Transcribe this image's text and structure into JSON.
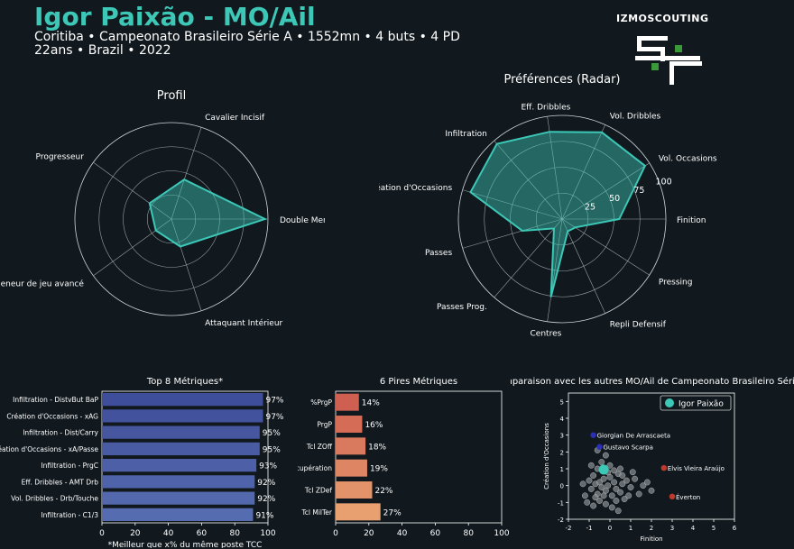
{
  "header": {
    "title": "Igor Paixão - MO/Ail",
    "line1": "Coritiba • Campeonato Brasileiro Série A • 1552mn • 4 buts • 4 PD",
    "line2": "22ans • Brazil • 2022",
    "brand": "IZMOSCOUTING"
  },
  "colors": {
    "accent": "#3cc7b6",
    "bg": "#11191f",
    "top_bars": "#4a5ba4",
    "worst_bars": "#e07f5a",
    "highlight_red": "#c0392b",
    "highlight_blue": "#2c2fb8"
  },
  "chart_data": [
    {
      "type": "radar",
      "title": "Profil",
      "labels": [
        "Double Menace",
        "Cavalier Incisif",
        "Progresseur",
        "Meneur de jeu avancé",
        "Attaquant Intérieur"
      ],
      "values": [
        97,
        43,
        28,
        20,
        30
      ],
      "rmax": 100
    },
    {
      "type": "radar",
      "title": "Préférences (Radar)",
      "labels": [
        "Finition",
        "Vol. Occasions",
        "Vol. Dribbles",
        "Eff. Dribbles",
        "Infiltration",
        "Création d'Occasions",
        "Passes",
        "Passes Prog.",
        "Centres",
        "Repli Defensif",
        "Pressing"
      ],
      "tick_labels": [
        "25",
        "50",
        "75",
        "100"
      ],
      "values": [
        55,
        95,
        92,
        85,
        96,
        92,
        40,
        12,
        76,
        13,
        15
      ],
      "rmax": 100
    },
    {
      "type": "bar",
      "orientation": "horizontal",
      "title": "Top 8 Métriques*",
      "categories": [
        "Infiltration - DistvBut BaP",
        "Création d'Occasions - xAG",
        "Infiltration - Dist/Carry",
        "Création d'Occasions - xA/Passe",
        "Infiltration - PrgC",
        "Eff. Dribbles - AMT Drb",
        "Vol. Dribbles - Drb/Touche",
        "Infiltration - C1/3"
      ],
      "values": [
        97,
        97,
        95,
        95,
        93,
        92,
        92,
        91
      ],
      "value_labels": [
        "97%",
        "97%",
        "95%",
        "95%",
        "93%",
        "92%",
        "92%",
        "91%"
      ],
      "xticks": [
        "0",
        "20",
        "40",
        "60",
        "80",
        "100"
      ],
      "xlim": [
        0,
        100
      ],
      "xlabel": "*Meilleur que x% du même poste TCC"
    },
    {
      "type": "bar",
      "orientation": "horizontal",
      "title": "6 Pires Métriques",
      "categories": [
        "%PrgP",
        "PrgP",
        "Tcl ZOff",
        "Récupération",
        "Tcl ZDef",
        "Tcl MilTer"
      ],
      "values": [
        14,
        16,
        18,
        19,
        22,
        27
      ],
      "value_labels": [
        "14%",
        "16%",
        "18%",
        "19%",
        "22%",
        "27%"
      ],
      "xticks": [
        "0",
        "20",
        "40",
        "60",
        "80",
        "100"
      ],
      "xlim": [
        0,
        100
      ]
    },
    {
      "type": "scatter",
      "title": "Comparaison avec les autres MO/Ail de Campeonato Brasileiro Série A",
      "xlabel": "Finition",
      "ylabel": "Création d'Occasions",
      "xlim": [
        -2,
        6
      ],
      "ylim": [
        -2,
        5.5
      ],
      "xticks": [
        "-2",
        "-1",
        "0",
        "1",
        "2",
        "3",
        "4",
        "5",
        "6"
      ],
      "yticks": [
        "-2",
        "-1",
        "0",
        "1",
        "2",
        "3",
        "4",
        "5"
      ],
      "legend": "Igor Paixão",
      "highlight": {
        "x": -0.3,
        "y": 0.95
      },
      "labeled_points": [
        {
          "name": "Giorgian De Arrascaeta",
          "x": -0.8,
          "y": 3.0,
          "color": "blue"
        },
        {
          "name": "Gustavo Scarpa",
          "x": -0.5,
          "y": 2.3,
          "color": "blue"
        },
        {
          "name": "Elvis Vieira Araújo",
          "x": 2.6,
          "y": 1.05,
          "color": "red"
        },
        {
          "name": "Éverton",
          "x": 3.0,
          "y": -0.65,
          "color": "red"
        }
      ],
      "others": [
        {
          "x": -1.0,
          "y": 0.3
        },
        {
          "x": -0.9,
          "y": -0.2
        },
        {
          "x": -0.8,
          "y": 0.6
        },
        {
          "x": -0.7,
          "y": 0.1
        },
        {
          "x": -0.6,
          "y": -0.5
        },
        {
          "x": -0.5,
          "y": 0.2
        },
        {
          "x": -0.4,
          "y": -0.1
        },
        {
          "x": -0.3,
          "y": 0.4
        },
        {
          "x": -0.2,
          "y": -0.3
        },
        {
          "x": -0.1,
          "y": 0.0
        },
        {
          "x": 0.0,
          "y": 0.5
        },
        {
          "x": 0.1,
          "y": -0.6
        },
        {
          "x": 0.2,
          "y": 0.2
        },
        {
          "x": 0.3,
          "y": -0.2
        },
        {
          "x": 0.4,
          "y": 0.7
        },
        {
          "x": 0.5,
          "y": -0.4
        },
        {
          "x": 0.6,
          "y": 0.1
        },
        {
          "x": 0.7,
          "y": -0.8
        },
        {
          "x": 0.8,
          "y": 0.3
        },
        {
          "x": 1.0,
          "y": -0.1
        },
        {
          "x": 1.2,
          "y": 0.4
        },
        {
          "x": 1.4,
          "y": -0.5
        },
        {
          "x": 1.6,
          "y": 0.0
        },
        {
          "x": 1.8,
          "y": 0.2
        },
        {
          "x": 2.0,
          "y": -0.3
        },
        {
          "x": -1.2,
          "y": -0.6
        },
        {
          "x": -1.1,
          "y": -1.0
        },
        {
          "x": -0.8,
          "y": -1.2
        },
        {
          "x": -0.5,
          "y": -0.9
        },
        {
          "x": -0.2,
          "y": -1.1
        },
        {
          "x": 0.1,
          "y": -1.3
        },
        {
          "x": 0.3,
          "y": -0.9
        },
        {
          "x": -0.6,
          "y": 1.0
        },
        {
          "x": -0.4,
          "y": 1.4
        },
        {
          "x": 0.0,
          "y": 1.2
        },
        {
          "x": 0.2,
          "y": 0.9
        },
        {
          "x": -0.9,
          "y": 1.2
        },
        {
          "x": 0.5,
          "y": 1.0
        },
        {
          "x": -1.3,
          "y": 0.1
        },
        {
          "x": -0.7,
          "y": -0.7
        },
        {
          "x": 0.9,
          "y": -0.6
        },
        {
          "x": 1.1,
          "y": 0.8
        },
        {
          "x": -0.3,
          "y": -0.6
        },
        {
          "x": 0.6,
          "y": 0.6
        },
        {
          "x": -0.1,
          "y": 0.8
        },
        {
          "x": -0.6,
          "y": 2.1
        },
        {
          "x": -0.2,
          "y": 1.8
        },
        {
          "x": 0.4,
          "y": -1.5
        }
      ]
    }
  ]
}
